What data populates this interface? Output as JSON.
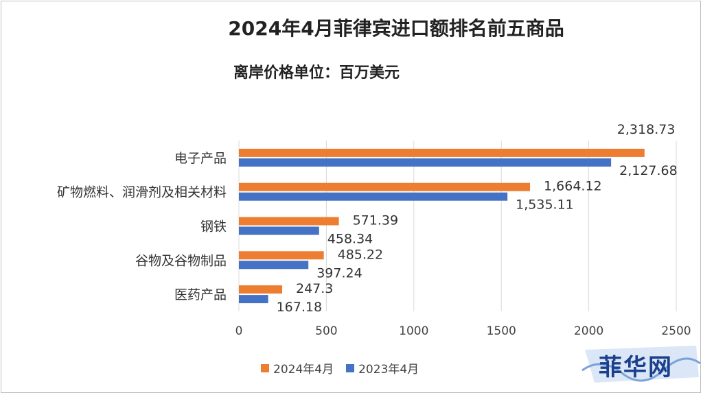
{
  "title": "2024年4月菲律宾进口额排名前五商品",
  "subtitle": "离岸价格单位：百万美元",
  "logo_text": "菲华网",
  "colors": {
    "series_2024": "#ed7d31",
    "series_2023": "#4472c4"
  },
  "chart_data": {
    "type": "bar",
    "orientation": "horizontal",
    "categories": [
      "电子产品",
      "矿物燃料、润滑剂及相关材料",
      "钢铁",
      "谷物及谷物制品",
      "医药产品"
    ],
    "series": [
      {
        "name": "2024年4月",
        "values": [
          2318.73,
          1664.12,
          571.39,
          485.22,
          247.3
        ]
      },
      {
        "name": "2023年4月",
        "values": [
          2127.68,
          1535.11,
          458.34,
          397.24,
          167.18
        ]
      }
    ],
    "data_labels": [
      [
        "2,318.73",
        "1,664.12",
        "571.39",
        "485.22",
        "247.3"
      ],
      [
        "2,127.68",
        "1,535.11",
        "458.34",
        "397.24",
        "167.18"
      ]
    ],
    "xlim": [
      0,
      2500
    ],
    "x_ticks": [
      "0",
      "500",
      "1000",
      "1500",
      "2000",
      "2500"
    ],
    "grid": true,
    "legend_position": "bottom"
  }
}
